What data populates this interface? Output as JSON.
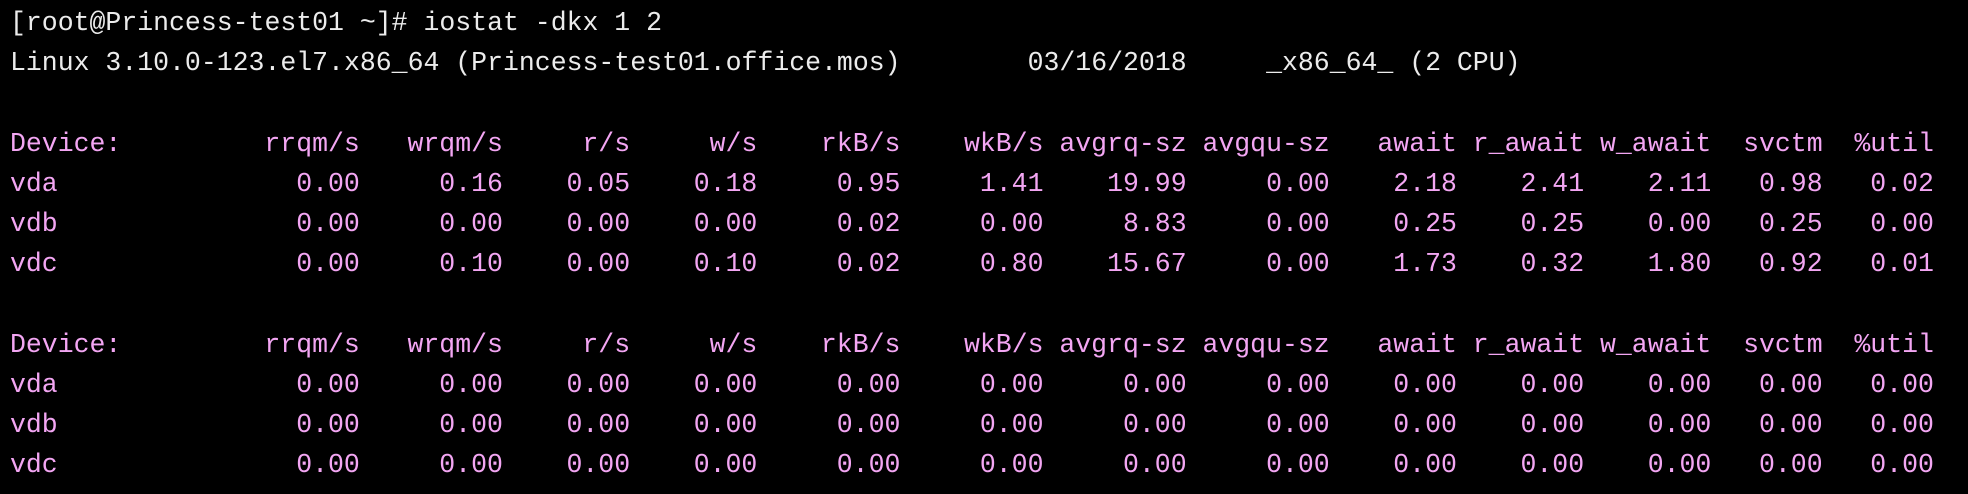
{
  "terminal": {
    "prompt": "[root@Princess-test01 ~]# iostat -dkx 1 2",
    "system": {
      "kernel": "Linux 3.10.0-123.el7.x86_64 (Princess-test01.office.mos)",
      "date": "03/16/2018",
      "arch": "_x86_64_",
      "cpus": "(2 CPU)"
    },
    "reports": [
      {
        "columns": [
          "Device:",
          "rrqm/s",
          "wrqm/s",
          "r/s",
          "w/s",
          "rkB/s",
          "wkB/s",
          "avgrq-sz",
          "avgqu-sz",
          "await",
          "r_await",
          "w_await",
          "svctm",
          "%util"
        ],
        "rows": [
          [
            "vda",
            "0.00",
            "0.16",
            "0.05",
            "0.18",
            "0.95",
            "1.41",
            "19.99",
            "0.00",
            "2.18",
            "2.41",
            "2.11",
            "0.98",
            "0.02"
          ],
          [
            "vdb",
            "0.00",
            "0.00",
            "0.00",
            "0.00",
            "0.02",
            "0.00",
            "8.83",
            "0.00",
            "0.25",
            "0.25",
            "0.00",
            "0.25",
            "0.00"
          ],
          [
            "vdc",
            "0.00",
            "0.10",
            "0.00",
            "0.10",
            "0.02",
            "0.80",
            "15.67",
            "0.00",
            "1.73",
            "0.32",
            "1.80",
            "0.92",
            "0.01"
          ]
        ]
      },
      {
        "columns": [
          "Device:",
          "rrqm/s",
          "wrqm/s",
          "r/s",
          "w/s",
          "rkB/s",
          "wkB/s",
          "avgrq-sz",
          "avgqu-sz",
          "await",
          "r_await",
          "w_await",
          "svctm",
          "%util"
        ],
        "rows": [
          [
            "vda",
            "0.00",
            "0.00",
            "0.00",
            "0.00",
            "0.00",
            "0.00",
            "0.00",
            "0.00",
            "0.00",
            "0.00",
            "0.00",
            "0.00",
            "0.00"
          ],
          [
            "vdb",
            "0.00",
            "0.00",
            "0.00",
            "0.00",
            "0.00",
            "0.00",
            "0.00",
            "0.00",
            "0.00",
            "0.00",
            "0.00",
            "0.00",
            "0.00"
          ],
          [
            "vdc",
            "0.00",
            "0.00",
            "0.00",
            "0.00",
            "0.00",
            "0.00",
            "0.00",
            "0.00",
            "0.00",
            "0.00",
            "0.00",
            "0.00",
            "0.00"
          ]
        ]
      }
    ]
  }
}
